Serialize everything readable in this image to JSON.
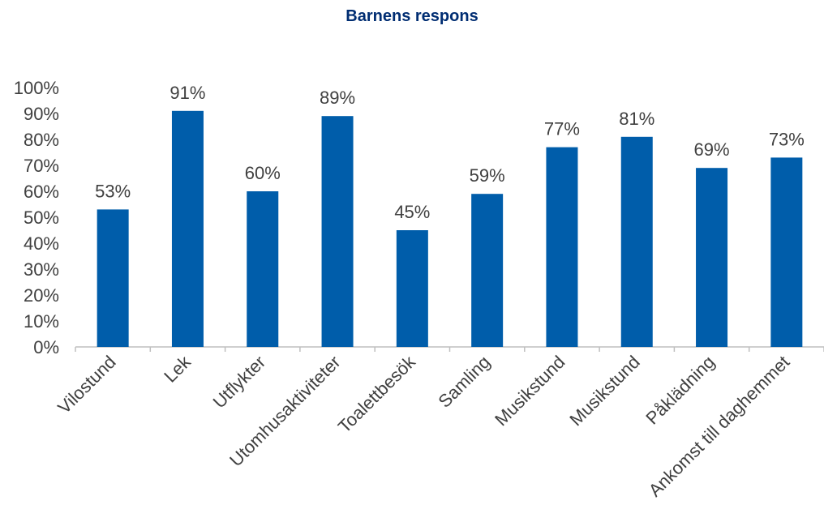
{
  "chart_data": {
    "type": "bar",
    "title": "Barnens respons",
    "xlabel": "",
    "ylabel": "",
    "ylim": [
      0,
      100
    ],
    "yticks": [
      "0%",
      "10%",
      "20%",
      "30%",
      "40%",
      "50%",
      "60%",
      "70%",
      "80%",
      "90%",
      "100%"
    ],
    "categories": [
      "Vilostund",
      "Lek",
      "Utflykter",
      "Utomhusaktiviteter",
      "Toalettbesök",
      "Samling",
      "Musikstund",
      "Musikstund",
      "Påklädning",
      "Ankomst till daghemmet"
    ],
    "values": [
      53,
      91,
      60,
      89,
      45,
      59,
      77,
      81,
      69,
      73
    ],
    "data_labels": [
      "53%",
      "91%",
      "60%",
      "89%",
      "45%",
      "59%",
      "77%",
      "81%",
      "69%",
      "73%"
    ],
    "legend": "none",
    "grid": false,
    "colors": {
      "bar": "#005DAA",
      "title": "#002D72",
      "text": "#404040",
      "axis": "#BFBFBF"
    }
  }
}
